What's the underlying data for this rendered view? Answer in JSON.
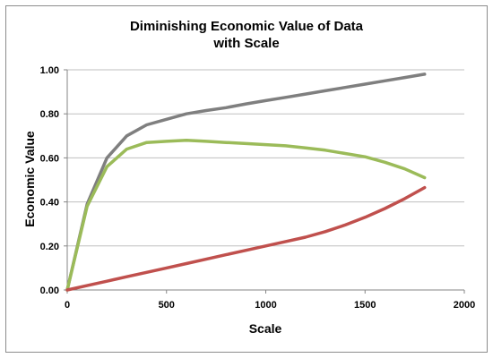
{
  "chart_data": {
    "type": "line",
    "title_line1": "Diminishing Economic Value of Data",
    "title_line2": "with Scale",
    "xlabel": "Scale",
    "ylabel": "Economic Value",
    "xlim": [
      0,
      2000
    ],
    "ylim": [
      0,
      1
    ],
    "x_ticks": [
      "0",
      "500",
      "1000",
      "1500",
      "2000"
    ],
    "y_ticks": [
      "0.00",
      "0.20",
      "0.40",
      "0.60",
      "0.80",
      "1.00"
    ],
    "grid": true,
    "legend": "none",
    "series": [
      {
        "color": "#7f7f7f",
        "x": [
          0,
          100,
          200,
          300,
          400,
          500,
          600,
          700,
          800,
          900,
          1000,
          1100,
          1200,
          1300,
          1400,
          1500,
          1600,
          1700,
          1800
        ],
        "y": [
          0.0,
          0.39,
          0.6,
          0.7,
          0.75,
          0.775,
          0.8,
          0.815,
          0.828,
          0.845,
          0.86,
          0.875,
          0.89,
          0.905,
          0.92,
          0.935,
          0.95,
          0.965,
          0.98
        ]
      },
      {
        "color": "#9bbb59",
        "x": [
          0,
          100,
          200,
          300,
          400,
          500,
          600,
          700,
          800,
          900,
          1000,
          1100,
          1200,
          1300,
          1400,
          1500,
          1600,
          1700,
          1800
        ],
        "y": [
          0.0,
          0.38,
          0.56,
          0.64,
          0.67,
          0.675,
          0.68,
          0.675,
          0.67,
          0.665,
          0.66,
          0.655,
          0.645,
          0.635,
          0.62,
          0.605,
          0.58,
          0.55,
          0.51
        ]
      },
      {
        "color": "#c0504d",
        "x": [
          0,
          100,
          200,
          300,
          400,
          500,
          600,
          700,
          800,
          900,
          1000,
          1100,
          1200,
          1300,
          1400,
          1500,
          1600,
          1700,
          1800
        ],
        "y": [
          0.0,
          0.02,
          0.04,
          0.06,
          0.08,
          0.1,
          0.12,
          0.14,
          0.16,
          0.18,
          0.2,
          0.22,
          0.24,
          0.265,
          0.295,
          0.33,
          0.37,
          0.415,
          0.465
        ]
      }
    ]
  }
}
